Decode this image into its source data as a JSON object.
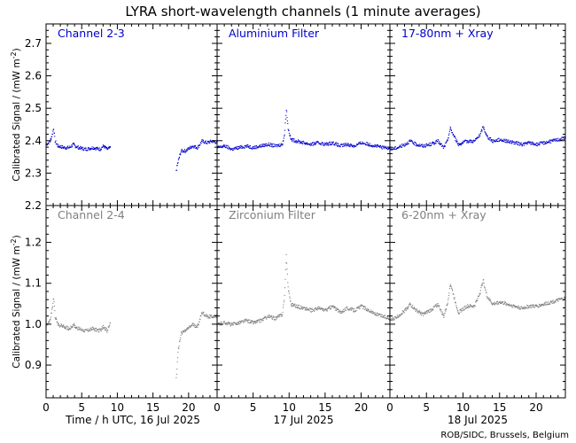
{
  "chart_data": {
    "type": "scatter",
    "title": "LYRA short-wavelength channels (1 minute averages)",
    "footer": "ROB/SIDC, Brussels, Belgium",
    "ylabel_main": "Calibrated Signal / (mW m",
    "ylabel_sup": "-2",
    "ylabel_close": ")",
    "x_ticks": [
      "0",
      "5",
      "10",
      "15",
      "20"
    ],
    "x_range": [
      0,
      24
    ],
    "colors": {
      "top": "#0000cc",
      "bottom": "#808080"
    },
    "columns": [
      {
        "xlabel": "Time / h UTC, 16 Jul 2025"
      },
      {
        "xlabel": "17 Jul 2025"
      },
      {
        "xlabel": "18 Jul 2025"
      }
    ],
    "rows": [
      {
        "ylim": [
          2.2,
          2.76
        ],
        "y_ticks": [
          2.2,
          2.3,
          2.4,
          2.5,
          2.6,
          2.7
        ],
        "y_tick_labels": [
          "2.2",
          "2.3",
          "2.4",
          "2.5",
          "2.6",
          "2.7"
        ],
        "panel_labels": [
          "Channel 2-3",
          "Aluminium Filter",
          "17-80nm + Xray"
        ],
        "series": [
          [
            [
              0,
              2.39
            ],
            [
              0.5,
              2.4
            ],
            [
              0.8,
              2.42
            ],
            [
              1.0,
              2.44
            ],
            [
              1.2,
              2.4
            ],
            [
              1.6,
              2.385
            ],
            [
              2.5,
              2.38
            ],
            [
              3.2,
              2.38
            ],
            [
              3.8,
              2.39
            ],
            [
              4.0,
              2.385
            ],
            [
              4.5,
              2.38
            ],
            [
              5.5,
              2.375
            ],
            [
              6.5,
              2.38
            ],
            [
              7.5,
              2.375
            ],
            [
              8.0,
              2.385
            ],
            [
              8.5,
              2.375
            ],
            [
              9.0,
              2.38
            ],
            [
              18.2,
              2.31
            ],
            [
              18.5,
              2.34
            ],
            [
              18.9,
              2.37
            ],
            [
              19.5,
              2.37
            ],
            [
              20.5,
              2.385
            ],
            [
              21.2,
              2.38
            ],
            [
              21.8,
              2.4
            ],
            [
              22.5,
              2.395
            ],
            [
              23.2,
              2.4
            ],
            [
              24,
              2.395
            ]
          ],
          [
            [
              0,
              2.38
            ],
            [
              1,
              2.385
            ],
            [
              2,
              2.375
            ],
            [
              3,
              2.38
            ],
            [
              4,
              2.385
            ],
            [
              5,
              2.38
            ],
            [
              6,
              2.385
            ],
            [
              7,
              2.39
            ],
            [
              8,
              2.385
            ],
            [
              9,
              2.39
            ],
            [
              9.3,
              2.42
            ],
            [
              9.55,
              2.5
            ],
            [
              9.8,
              2.44
            ],
            [
              10.2,
              2.405
            ],
            [
              11,
              2.4
            ],
            [
              12,
              2.395
            ],
            [
              13,
              2.39
            ],
            [
              14,
              2.395
            ],
            [
              15,
              2.39
            ],
            [
              16,
              2.395
            ],
            [
              17,
              2.385
            ],
            [
              18,
              2.39
            ],
            [
              19,
              2.385
            ],
            [
              20,
              2.395
            ],
            [
              21,
              2.39
            ],
            [
              22,
              2.385
            ],
            [
              23,
              2.38
            ],
            [
              24,
              2.38
            ]
          ],
          [
            [
              0,
              2.375
            ],
            [
              1,
              2.38
            ],
            [
              2,
              2.39
            ],
            [
              2.7,
              2.4
            ],
            [
              3.5,
              2.39
            ],
            [
              4.5,
              2.385
            ],
            [
              5.5,
              2.39
            ],
            [
              6.5,
              2.4
            ],
            [
              7.3,
              2.38
            ],
            [
              7.8,
              2.4
            ],
            [
              8.2,
              2.44
            ],
            [
              8.6,
              2.42
            ],
            [
              9.3,
              2.39
            ],
            [
              10.5,
              2.4
            ],
            [
              11.5,
              2.4
            ],
            [
              12.3,
              2.42
            ],
            [
              12.7,
              2.445
            ],
            [
              13.2,
              2.415
            ],
            [
              14,
              2.4
            ],
            [
              15,
              2.405
            ],
            [
              16,
              2.4
            ],
            [
              17,
              2.395
            ],
            [
              18,
              2.39
            ],
            [
              19,
              2.395
            ],
            [
              20,
              2.39
            ],
            [
              21,
              2.395
            ],
            [
              22,
              2.4
            ],
            [
              23,
              2.405
            ],
            [
              24,
              2.41
            ]
          ]
        ]
      },
      {
        "ylim": [
          0.82,
          1.29
        ],
        "y_ticks": [
          0.9,
          1.0,
          1.1,
          1.2
        ],
        "y_tick_labels": [
          "0.9",
          "1.0",
          "1.1",
          "1.2"
        ],
        "panel_labels": [
          "Channel 2-4",
          "Zirconium Filter",
          "6-20nm + Xray"
        ],
        "series": [
          [
            [
              0,
              1.0
            ],
            [
              0.5,
              1.01
            ],
            [
              0.8,
              1.04
            ],
            [
              1.0,
              1.065
            ],
            [
              1.2,
              1.02
            ],
            [
              1.6,
              1.0
            ],
            [
              2.5,
              0.995
            ],
            [
              3.2,
              0.99
            ],
            [
              3.8,
              1.0
            ],
            [
              4.0,
              0.995
            ],
            [
              4.5,
              0.99
            ],
            [
              5.5,
              0.985
            ],
            [
              6.5,
              0.99
            ],
            [
              7.5,
              0.985
            ],
            [
              8.0,
              0.995
            ],
            [
              8.5,
              0.985
            ],
            [
              9.0,
              1.005
            ],
            [
              18.2,
              0.87
            ],
            [
              18.5,
              0.94
            ],
            [
              18.9,
              0.98
            ],
            [
              19.5,
              0.985
            ],
            [
              20.5,
              1.0
            ],
            [
              21.2,
              0.995
            ],
            [
              21.8,
              1.03
            ],
            [
              22.5,
              1.02
            ],
            [
              23.2,
              1.02
            ],
            [
              24,
              1.02
            ]
          ],
          [
            [
              0,
              1.0
            ],
            [
              1,
              1.005
            ],
            [
              2,
              1.0
            ],
            [
              3,
              1.005
            ],
            [
              4,
              1.01
            ],
            [
              5,
              1.005
            ],
            [
              6,
              1.01
            ],
            [
              7,
              1.02
            ],
            [
              8,
              1.015
            ],
            [
              9,
              1.025
            ],
            [
              9.3,
              1.07
            ],
            [
              9.55,
              1.17
            ],
            [
              9.8,
              1.09
            ],
            [
              10.2,
              1.05
            ],
            [
              11,
              1.045
            ],
            [
              12,
              1.04
            ],
            [
              13,
              1.035
            ],
            [
              14,
              1.04
            ],
            [
              15,
              1.035
            ],
            [
              16,
              1.045
            ],
            [
              17,
              1.03
            ],
            [
              18,
              1.04
            ],
            [
              19,
              1.035
            ],
            [
              20,
              1.045
            ],
            [
              21,
              1.035
            ],
            [
              22,
              1.025
            ],
            [
              23,
              1.02
            ],
            [
              24,
              1.015
            ]
          ],
          [
            [
              0,
              1.01
            ],
            [
              1,
              1.02
            ],
            [
              2,
              1.035
            ],
            [
              2.7,
              1.05
            ],
            [
              3.5,
              1.035
            ],
            [
              4.5,
              1.025
            ],
            [
              5.5,
              1.035
            ],
            [
              6.5,
              1.05
            ],
            [
              7.3,
              1.02
            ],
            [
              7.8,
              1.05
            ],
            [
              8.2,
              1.1
            ],
            [
              8.6,
              1.075
            ],
            [
              9.3,
              1.03
            ],
            [
              10.5,
              1.045
            ],
            [
              11.5,
              1.045
            ],
            [
              12.3,
              1.08
            ],
            [
              12.7,
              1.11
            ],
            [
              13.2,
              1.07
            ],
            [
              14,
              1.05
            ],
            [
              15,
              1.055
            ],
            [
              16,
              1.05
            ],
            [
              17,
              1.045
            ],
            [
              18,
              1.04
            ],
            [
              19,
              1.045
            ],
            [
              20,
              1.045
            ],
            [
              21,
              1.05
            ],
            [
              22,
              1.055
            ],
            [
              23,
              1.06
            ],
            [
              24,
              1.065
            ]
          ]
        ]
      }
    ]
  }
}
